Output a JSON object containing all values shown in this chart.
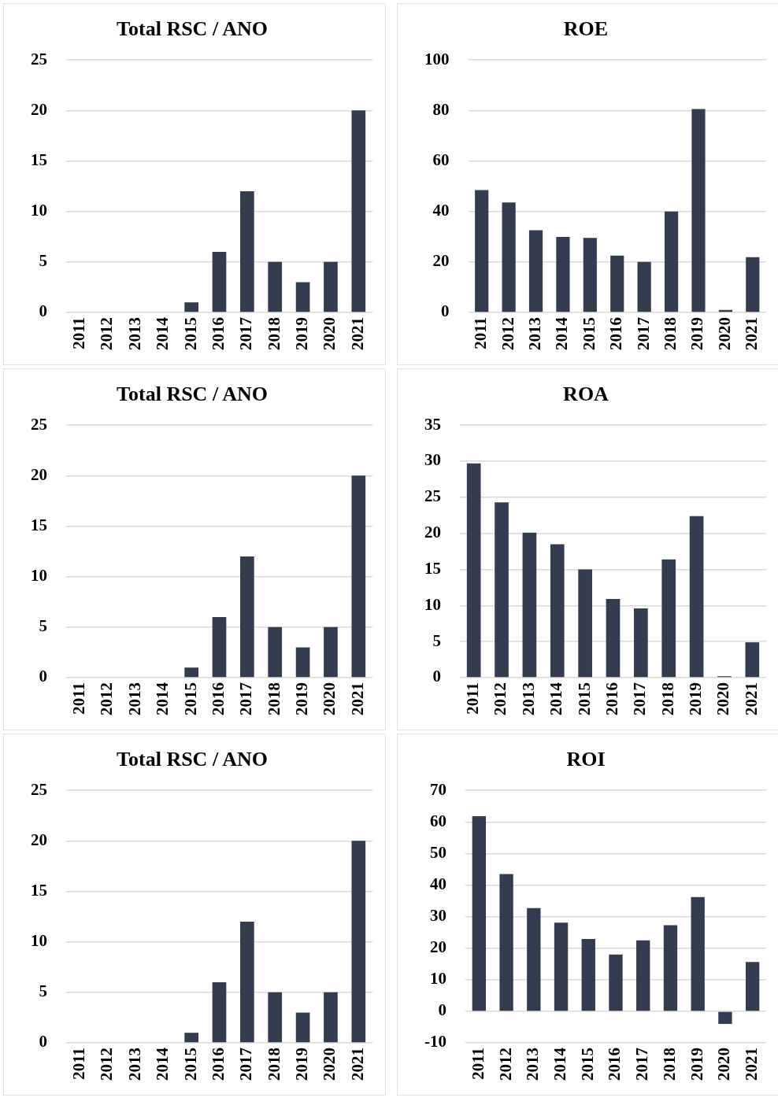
{
  "chart_data": [
    {
      "type": "bar",
      "title": "Total RSC / ANO",
      "categories": [
        "2011",
        "2012",
        "2013",
        "2014",
        "2015",
        "2016",
        "2017",
        "2018",
        "2019",
        "2020",
        "2021"
      ],
      "values": [
        0,
        0,
        0,
        0,
        1,
        6,
        12,
        5,
        3,
        5,
        20
      ],
      "color": "#333d4f",
      "ylim": [
        0,
        25
      ],
      "yticks": [
        0,
        5,
        10,
        15,
        20,
        25
      ],
      "grid": "y"
    },
    {
      "type": "bar",
      "title": "ROE",
      "categories": [
        "2011",
        "2012",
        "2013",
        "2014",
        "2015",
        "2016",
        "2017",
        "2018",
        "2019",
        "2020",
        "2021"
      ],
      "values": [
        48.5,
        43.6,
        32.6,
        29.9,
        29.5,
        22.5,
        20,
        40,
        80.6,
        1,
        21.9
      ],
      "color": "#333d4f",
      "ylim": [
        0,
        100
      ],
      "yticks": [
        0,
        20,
        40,
        60,
        80,
        100
      ],
      "grid": "y"
    },
    {
      "type": "bar",
      "title": "Total RSC / ANO",
      "categories": [
        "2011",
        "2012",
        "2013",
        "2014",
        "2015",
        "2016",
        "2017",
        "2018",
        "2019",
        "2020",
        "2021"
      ],
      "values": [
        0,
        0,
        0,
        0,
        1,
        6,
        12,
        5,
        3,
        5,
        20
      ],
      "color": "#333d4f",
      "ylim": [
        0,
        25
      ],
      "yticks": [
        0,
        5,
        10,
        15,
        20,
        25
      ],
      "grid": "y"
    },
    {
      "type": "bar",
      "title": "ROA",
      "categories": [
        "2011",
        "2012",
        "2013",
        "2014",
        "2015",
        "2016",
        "2017",
        "2018",
        "2019",
        "2020",
        "2021"
      ],
      "values": [
        29.7,
        24.3,
        20.1,
        18.5,
        15,
        10.9,
        9.6,
        16.4,
        22.4,
        0.2,
        4.9
      ],
      "color": "#333d4f",
      "ylim": [
        0,
        35
      ],
      "yticks": [
        0,
        5,
        10,
        15,
        20,
        25,
        30,
        35
      ],
      "grid": "y"
    },
    {
      "type": "bar",
      "title": "Total RSC / ANO",
      "categories": [
        "2011",
        "2012",
        "2013",
        "2014",
        "2015",
        "2016",
        "2017",
        "2018",
        "2019",
        "2020",
        "2021"
      ],
      "values": [
        0,
        0,
        0,
        0,
        1,
        6,
        12,
        5,
        3,
        5,
        20
      ],
      "color": "#333d4f",
      "ylim": [
        0,
        25
      ],
      "yticks": [
        0,
        5,
        10,
        15,
        20,
        25
      ],
      "grid": "y"
    },
    {
      "type": "bar",
      "title": "ROI",
      "categories": [
        "2011",
        "2012",
        "2013",
        "2014",
        "2015",
        "2016",
        "2017",
        "2018",
        "2019",
        "2020",
        "2021"
      ],
      "values": [
        61.8,
        43.5,
        32.7,
        28.1,
        22.9,
        18,
        22.5,
        27.3,
        36.2,
        -4,
        15.6
      ],
      "color": "#333d4f",
      "ylim": [
        -10,
        70
      ],
      "yticks": [
        -10,
        0,
        10,
        20,
        30,
        40,
        50,
        60,
        70
      ],
      "grid": "y"
    }
  ]
}
